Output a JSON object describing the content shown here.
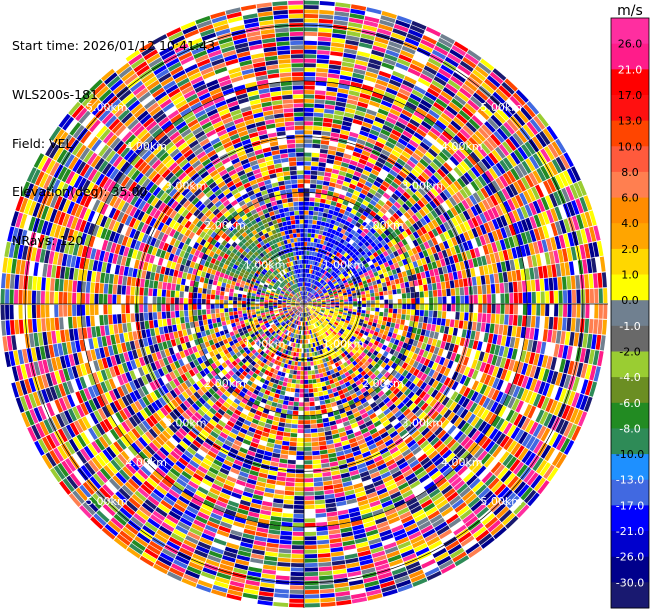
{
  "header": {
    "start_time": "Start time: 2026/01/12 10:41:43",
    "instrument": "WLS200s-181",
    "field": "Field: VEL",
    "elevation": "Elevation(deg): 35.00",
    "nrays": "NRays: 120"
  },
  "chart_data": {
    "type": "heatmap",
    "projection": "polar-ppi",
    "field": "VEL",
    "units": "m/s",
    "n_rays": 120,
    "elevation_deg": 35.0,
    "range_rings_km": [
      1.0,
      2.0,
      3.0,
      4.0,
      5.0
    ],
    "ring_labels": {
      "ring_1": "1.00km",
      "ring_2": "2.00km",
      "ring_3": "3.00km",
      "ring_4": "4.00km",
      "ring_5": "5.00km"
    },
    "colorbar": {
      "title": "m/s",
      "ticks": [
        "26.0",
        "21.0",
        "17.0",
        "13.0",
        "10.0",
        "8.0",
        "6.0",
        "4.0",
        "2.0",
        "1.0",
        "0.0",
        "-1.0",
        "-2.0",
        "-4.0",
        "-6.0",
        "-8.0",
        "-10.0",
        "-13.0",
        "-17.0",
        "-21.0",
        "-26.0",
        "-30.0"
      ],
      "colors": [
        "#ff2ea0",
        "#ff1c8a",
        "#ff0000",
        "#ff1010",
        "#ff4500",
        "#ff5a3c",
        "#ff7f50",
        "#ff8c00",
        "#ffa500",
        "#ffd700",
        "#ffff00",
        "#708090",
        "#696969",
        "#9acd32",
        "#6b8e23",
        "#228b22",
        "#2e8b57",
        "#1e90ff",
        "#4169e1",
        "#0000ff",
        "#0000cd",
        "#00008b",
        "#191970"
      ]
    }
  }
}
